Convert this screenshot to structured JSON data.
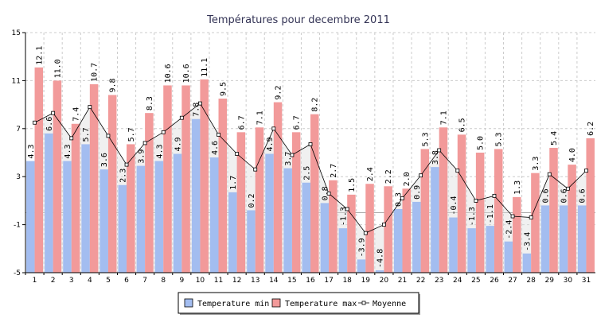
{
  "chart_data": {
    "type": "bar",
    "title": "Températures pour decembre 2011",
    "xlabel": "",
    "ylabel": "",
    "ylim": [
      -5,
      15
    ],
    "yticks": [
      -5,
      -1,
      3,
      7,
      11,
      15
    ],
    "categories": [
      "1",
      "2",
      "3",
      "4",
      "5",
      "6",
      "7",
      "8",
      "9",
      "10",
      "11",
      "12",
      "13",
      "14",
      "15",
      "16",
      "17",
      "18",
      "19",
      "20",
      "21",
      "22",
      "23",
      "24",
      "25",
      "26",
      "27",
      "28",
      "29",
      "30",
      "31"
    ],
    "series": [
      {
        "name": "Temperature min",
        "kind": "bar",
        "color": "#a3bdf0",
        "values": [
          4.3,
          6.6,
          4.3,
          5.7,
          3.6,
          2.3,
          3.9,
          4.3,
          4.9,
          7.8,
          4.6,
          1.7,
          0.2,
          4.9,
          3.7,
          2.5,
          0.8,
          -1.3,
          -3.9,
          -4.8,
          0.3,
          0.9,
          3.8,
          -0.4,
          -1.3,
          -1.1,
          -2.4,
          -3.4,
          0.6,
          0.6,
          0.6
        ]
      },
      {
        "name": "Temperature max",
        "kind": "bar",
        "color": "#f29a9a",
        "values": [
          12.1,
          11.0,
          7.4,
          10.7,
          9.8,
          5.7,
          8.3,
          10.6,
          10.6,
          11.1,
          9.5,
          6.7,
          7.1,
          9.2,
          6.7,
          8.2,
          2.7,
          1.5,
          2.4,
          2.2,
          2.0,
          5.3,
          7.1,
          6.5,
          5.0,
          5.3,
          1.3,
          3.3,
          5.4,
          4.0,
          6.2
        ]
      },
      {
        "name": "Moyenne",
        "kind": "line",
        "color": "#000000",
        "values": [
          7.5,
          8.3,
          6.2,
          8.8,
          6.4,
          4.0,
          5.8,
          6.7,
          7.9,
          9.1,
          6.5,
          4.9,
          3.6,
          7.0,
          4.8,
          5.7,
          1.6,
          0.3,
          -1.7,
          -1.0,
          1.2,
          3.1,
          5.2,
          3.5,
          1.0,
          1.4,
          -0.3,
          -0.4,
          3.2,
          2.0,
          3.5
        ]
      }
    ],
    "legend": {
      "position": "bottom-center"
    },
    "grid": true
  }
}
